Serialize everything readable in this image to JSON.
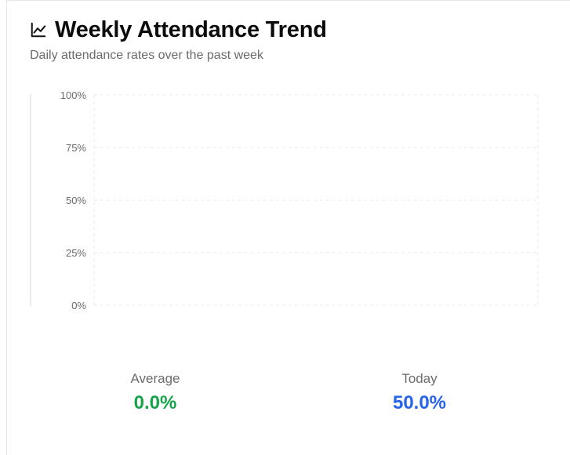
{
  "header": {
    "icon": "line-chart-icon",
    "title": "Weekly Attendance Trend",
    "subtitle": "Daily attendance rates over the past week"
  },
  "chart_data": {
    "type": "line",
    "title": "",
    "xlabel": "",
    "ylabel": "",
    "ylim": [
      0,
      100
    ],
    "y_ticks": [
      "100%",
      "75%",
      "50%",
      "25%",
      "0%"
    ],
    "y_tick_values": [
      100,
      75,
      50,
      25,
      0
    ],
    "grid": true,
    "series": []
  },
  "stats": {
    "average": {
      "label": "Average",
      "value": "0.0%",
      "color": "#16a34a"
    },
    "today": {
      "label": "Today",
      "value": "50.0%",
      "color": "#2563eb"
    }
  }
}
